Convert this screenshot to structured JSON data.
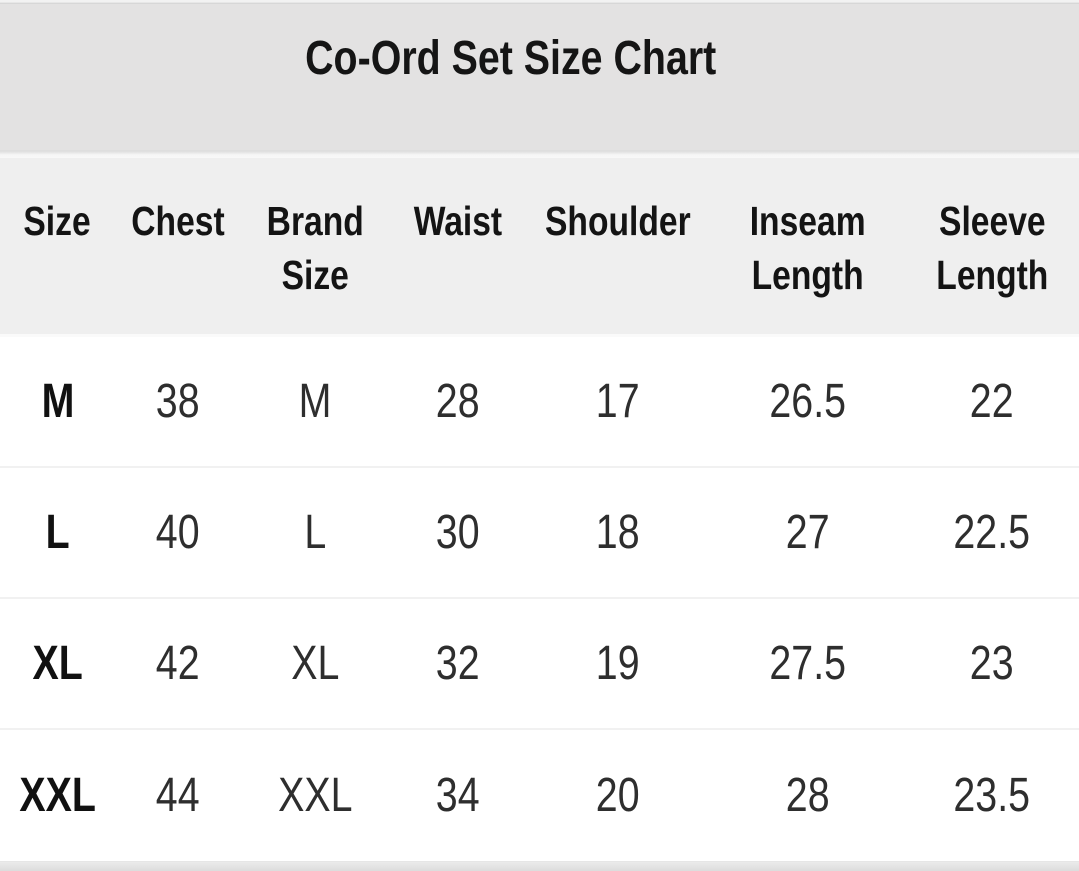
{
  "title": "Co-Ord Set Size Chart",
  "chart_data": {
    "type": "table",
    "title": "Co-Ord Set Size Chart",
    "columns": [
      "Size",
      "Chest",
      "Brand Size",
      "Waist",
      "Shoulder",
      "Inseam Length",
      "Sleeve Length"
    ],
    "rows": [
      [
        "M",
        "38",
        "M",
        "28",
        "17",
        "26.5",
        "22"
      ],
      [
        "L",
        "40",
        "L",
        "30",
        "18",
        "27",
        "22.5"
      ],
      [
        "XL",
        "42",
        "XL",
        "32",
        "19",
        "27.5",
        "23"
      ],
      [
        "XXL",
        "44",
        "XXL",
        "34",
        "20",
        "28",
        "23.5"
      ]
    ]
  },
  "colors": {
    "title_band_bg": "#e3e2e2",
    "header_band_bg": "#efefef",
    "row_bg": "#ffffff",
    "row_separator": "#f1f1f1",
    "text": "#141414"
  }
}
